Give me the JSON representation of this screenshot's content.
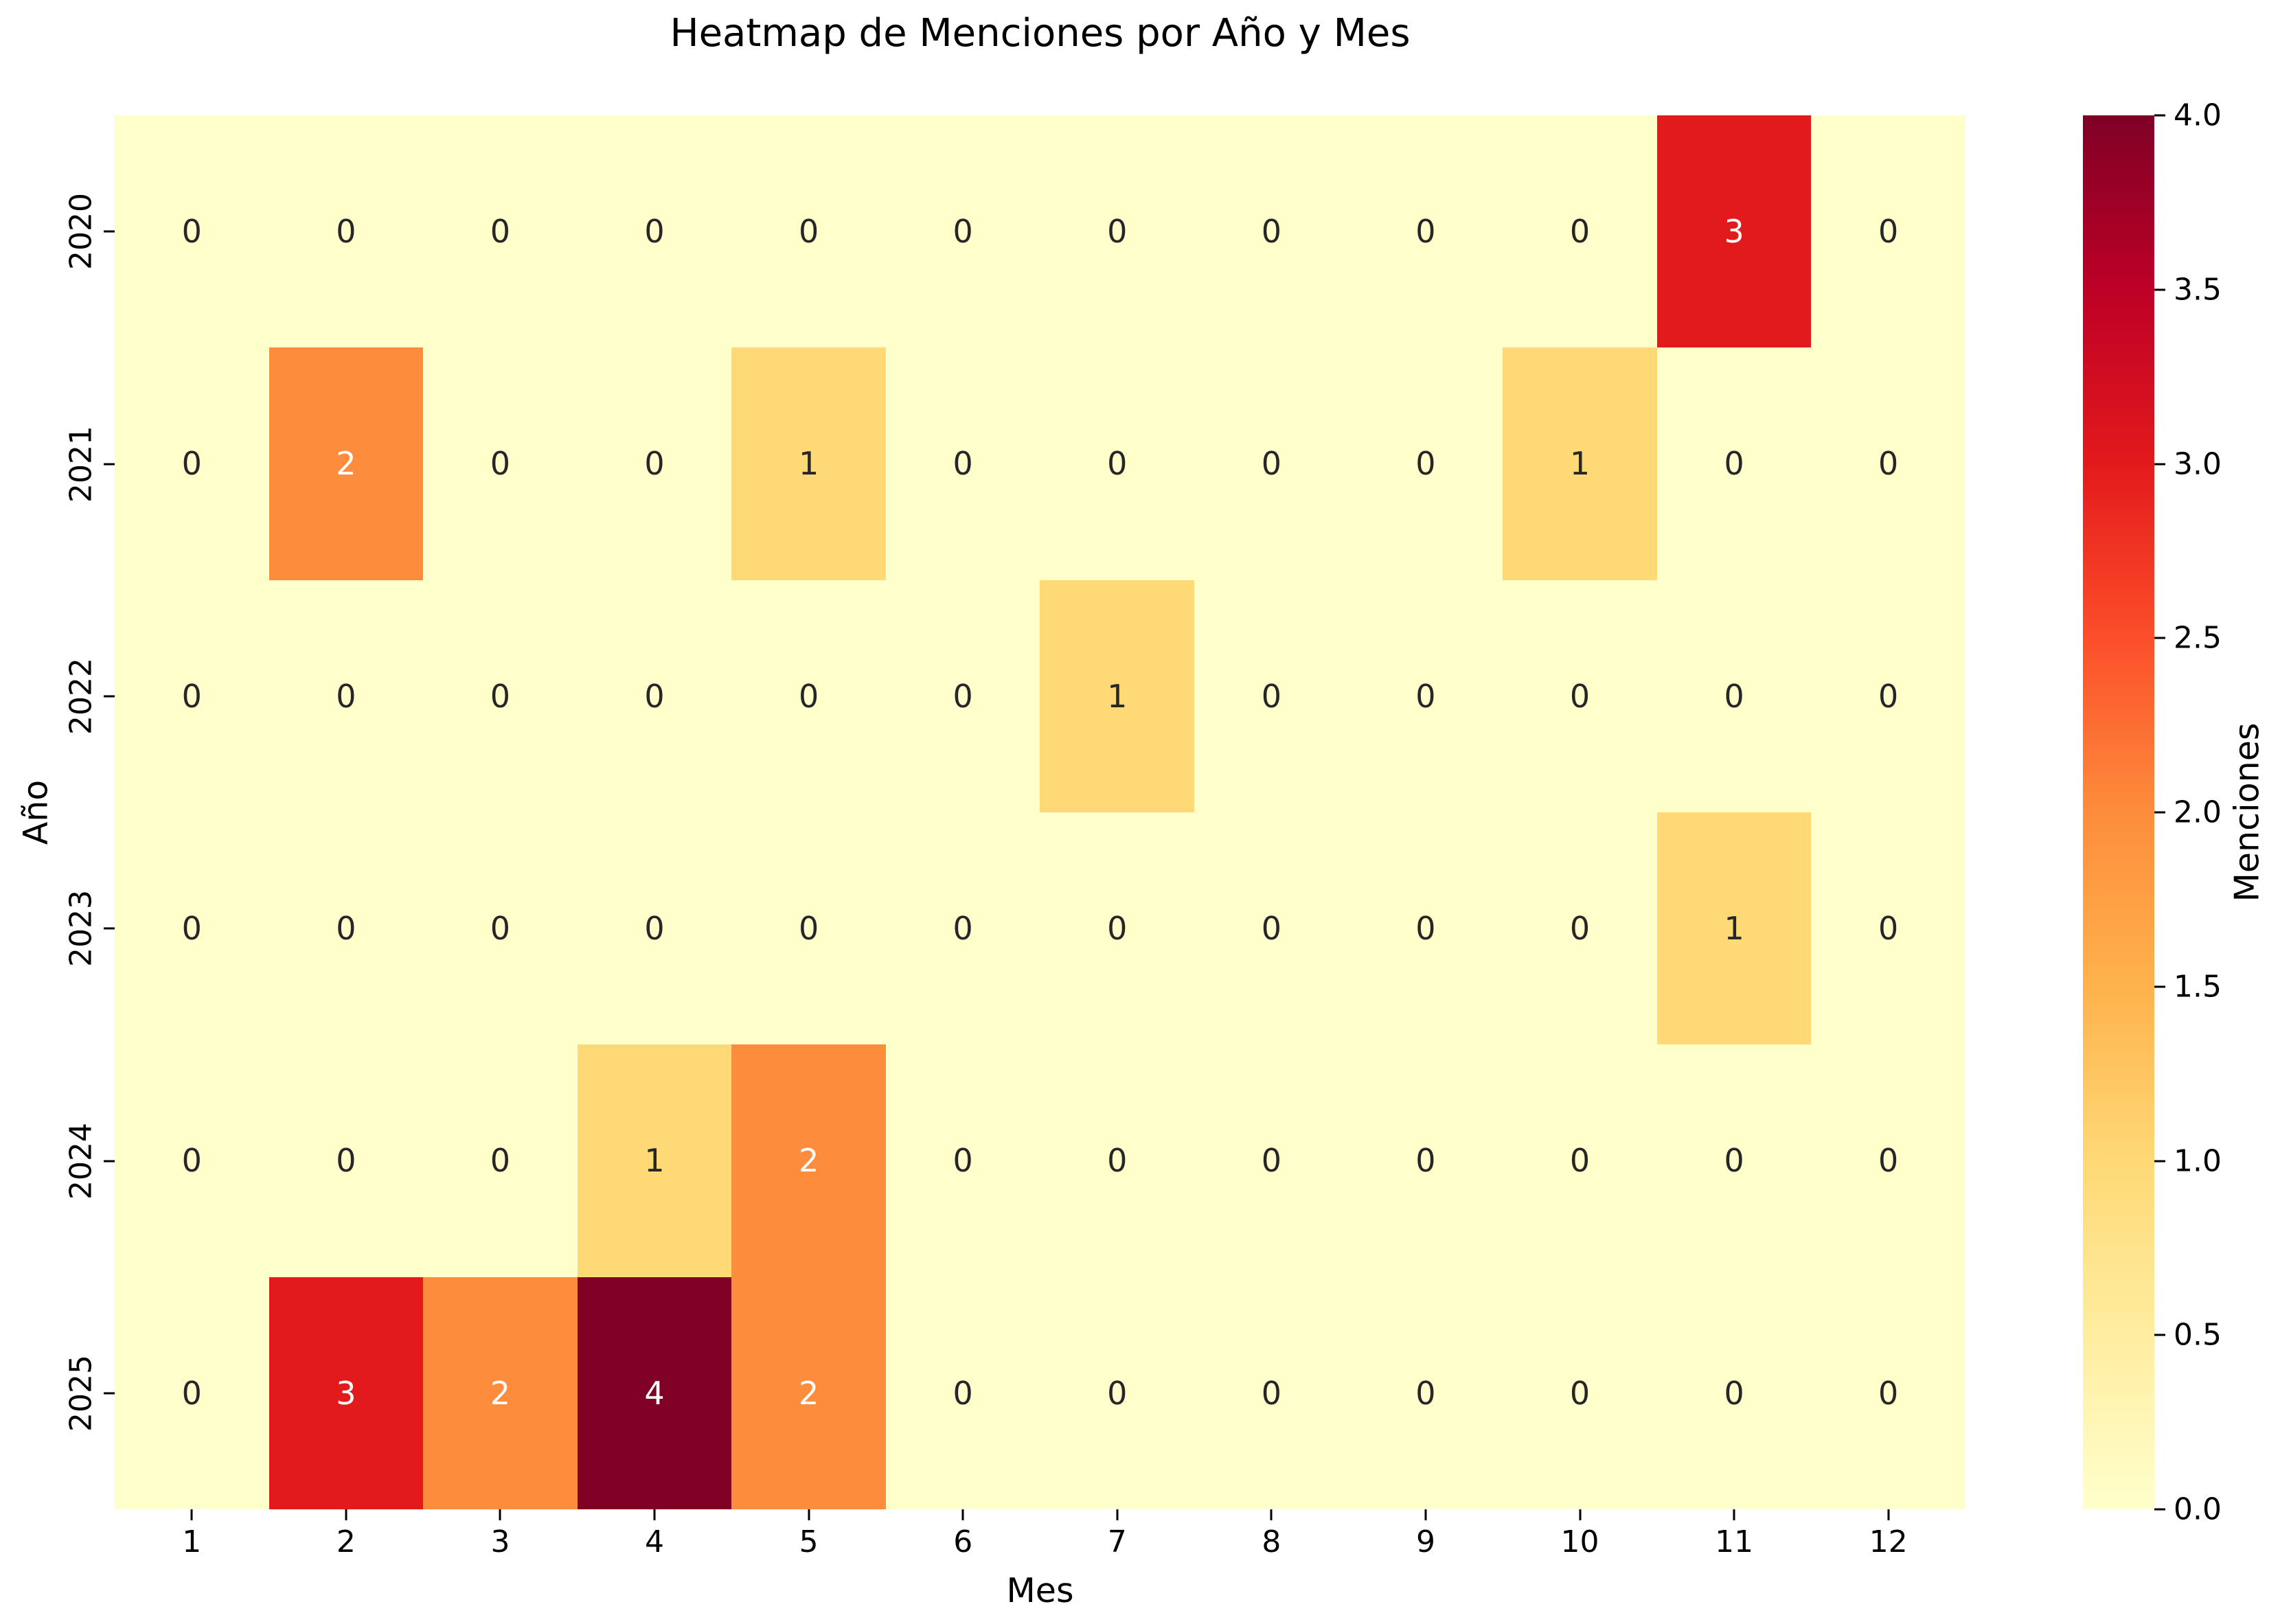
{
  "title": "Heatmap de Menciones por Año y Mes",
  "x_axis": {
    "label": "Mes",
    "ticks": [
      "1",
      "2",
      "3",
      "4",
      "5",
      "6",
      "7",
      "8",
      "9",
      "10",
      "11",
      "12"
    ]
  },
  "y_axis": {
    "label": "Año",
    "ticks": [
      "2020",
      "2021",
      "2022",
      "2023",
      "2024",
      "2025"
    ]
  },
  "colorbar": {
    "label": "Menciones",
    "ticks": [
      "0.0",
      "0.5",
      "1.0",
      "1.5",
      "2.0",
      "2.5",
      "3.0",
      "3.5",
      "4.0"
    ],
    "min": 0,
    "max": 4
  },
  "chart_data": {
    "type": "heatmap",
    "title": "Heatmap de Menciones por Año y Mes",
    "xlabel": "Mes",
    "ylabel": "Año",
    "colorbar_label": "Menciones",
    "colormap": "YlOrRd",
    "vmin": 0,
    "vmax": 4,
    "columns": [
      1,
      2,
      3,
      4,
      5,
      6,
      7,
      8,
      9,
      10,
      11,
      12
    ],
    "rows": [
      2020,
      2021,
      2022,
      2023,
      2024,
      2025
    ],
    "values": [
      [
        0,
        0,
        0,
        0,
        0,
        0,
        0,
        0,
        0,
        0,
        3,
        0
      ],
      [
        0,
        2,
        0,
        0,
        1,
        0,
        0,
        0,
        0,
        1,
        0,
        0
      ],
      [
        0,
        0,
        0,
        0,
        0,
        0,
        1,
        0,
        0,
        0,
        0,
        0
      ],
      [
        0,
        0,
        0,
        0,
        0,
        0,
        0,
        0,
        0,
        0,
        1,
        0
      ],
      [
        0,
        0,
        0,
        1,
        2,
        0,
        0,
        0,
        0,
        0,
        0,
        0
      ],
      [
        0,
        3,
        2,
        4,
        2,
        0,
        0,
        0,
        0,
        0,
        0,
        0
      ]
    ],
    "value_colors": {
      "0": "#ffffcc",
      "1": "#fed976",
      "2": "#fd8d3c",
      "3": "#e31a1c",
      "4": "#800026"
    },
    "gradient_stops": [
      "#ffffcc",
      "#ffeda0",
      "#fed976",
      "#feb24c",
      "#fd8d3c",
      "#fc4e2a",
      "#e31a1c",
      "#bd0026",
      "#800026"
    ],
    "annotation_text_dark": "#262626",
    "annotation_text_light": "#ffffff",
    "legend_position": "right",
    "grid": false
  }
}
